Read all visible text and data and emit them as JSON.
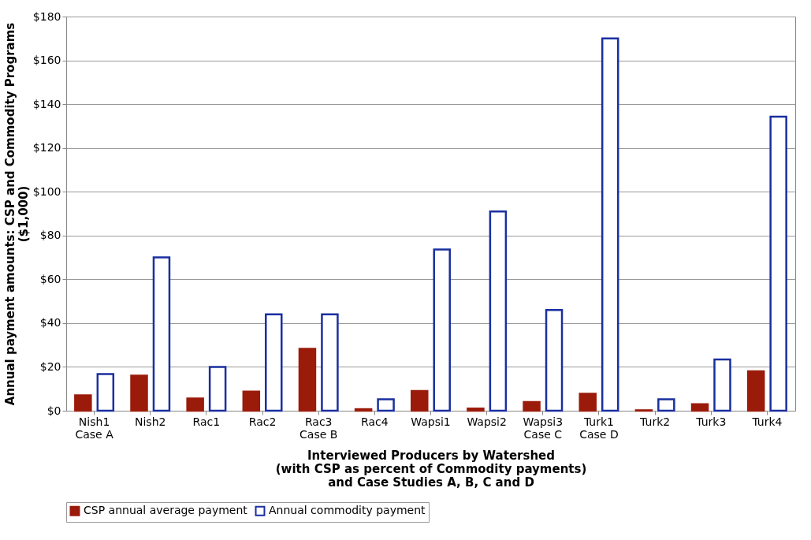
{
  "chart_data": {
    "type": "bar",
    "xlabel": "Interviewed Producers by Watershed\n(with CSP as percent of Commodity payments)\nand Case Studies A, B, C and D",
    "ylabel": "Annual payment amounts: CSP and Commodity Programs\n($1,000)",
    "categories": [
      "Nish1\nCase A",
      "Nish2",
      "Rac1",
      "Rac2",
      "Rac3\nCase B",
      "Rac4",
      "Wapsi1",
      "Wapsi2",
      "Wapsi3\nCase C",
      "Turk1\nCase D",
      "Turk2",
      "Turk3",
      "Turk4"
    ],
    "series": [
      {
        "name": "CSP annual average payment",
        "color": "#9b1b0b",
        "values": [
          7,
          16,
          5.6,
          8.7,
          28.3,
          0.7,
          9,
          1,
          4,
          7.7,
          0.2,
          3,
          18
        ]
      },
      {
        "name": "Annual commodity payment",
        "color": "#1a2fa0",
        "values": [
          16.7,
          70,
          20,
          44,
          44,
          5.2,
          73.6,
          91,
          46,
          170,
          5.2,
          23.4,
          134.3
        ]
      }
    ],
    "ylim": [
      0,
      180
    ],
    "yticks": [
      {
        "value": 0,
        "label": "$0"
      },
      {
        "value": 20,
        "label": "$20"
      },
      {
        "value": 40,
        "label": "$40"
      },
      {
        "value": 60,
        "label": "$60"
      },
      {
        "value": 80,
        "label": "$80"
      },
      {
        "value": 100,
        "label": "$100"
      },
      {
        "value": 120,
        "label": "$120"
      },
      {
        "value": 140,
        "label": "$140"
      },
      {
        "value": 160,
        "label": "$160"
      },
      {
        "value": 180,
        "label": "$180"
      }
    ],
    "grid": "y",
    "legend": "bottom"
  }
}
